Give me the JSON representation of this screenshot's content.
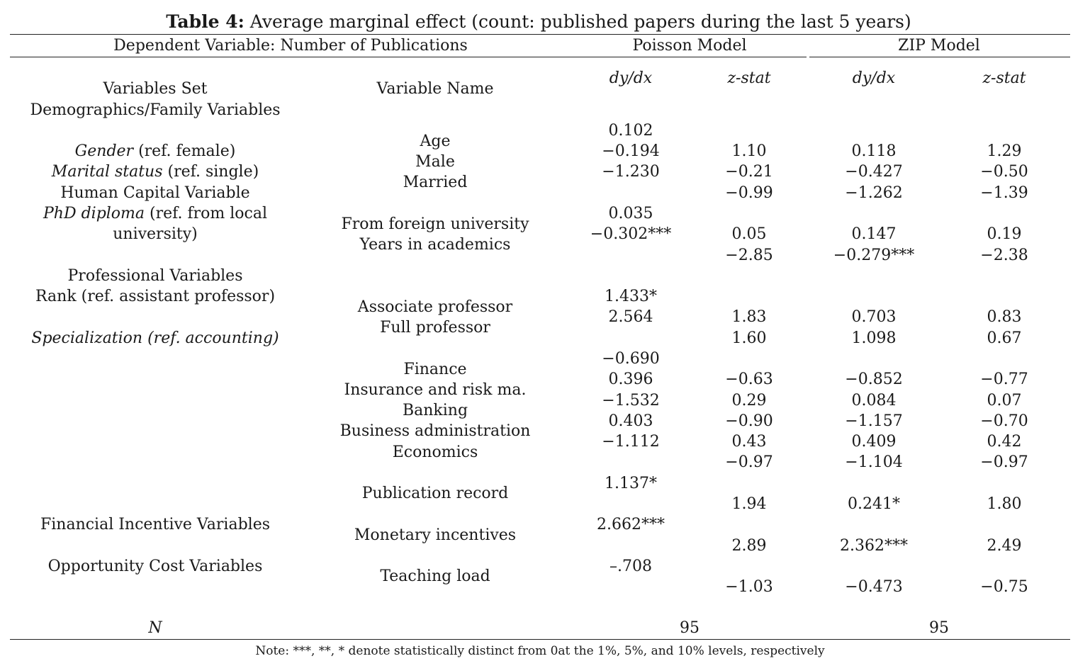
{
  "title": {
    "label": "Table 4:",
    "text": "Average marginal effect (count: published papers during the last 5 years)"
  },
  "header": {
    "dependent": "Dependent Variable: Number of Publications",
    "poisson": "Poisson Model",
    "zip": "ZIP Model",
    "variables_set": "Variables Set",
    "variable_name": "Variable Name",
    "dydx_1": "dy/dx",
    "zstat_1": "z-stat",
    "dydx_2": "dy/dx",
    "zstat_2": "z-stat"
  },
  "sets": [
    {
      "text": "Demographics/Family Variables",
      "italic": false
    },
    {
      "text": "Gender",
      "suffix": " (ref. female)",
      "italic": true
    },
    {
      "text": "Marital status",
      "suffix": " (ref. single)",
      "italic": true
    },
    {
      "text": "Human Capital Variable",
      "italic": false
    },
    {
      "text": "PhD diploma",
      "suffix": " (ref. from local",
      "italic": true
    },
    {
      "text": "university)",
      "italic": false
    },
    {
      "text": "Professional Variables",
      "italic": false
    },
    {
      "text": "Rank (ref. assistant professor)",
      "italic": false
    },
    {
      "text": "Specialization (ref. accounting)",
      "italic": true
    },
    {
      "text": "Financial Incentive Variables",
      "italic": false
    },
    {
      "text": "Opportunity Cost Variables",
      "italic": false
    }
  ],
  "variables": [
    "Age",
    "Male",
    "Married",
    "From foreign university",
    "Years in academics",
    "Associate professor",
    "Full professor",
    "Finance",
    "Insurance and risk ma.",
    "Banking",
    "Business administration",
    "Economics",
    "Publication record",
    "Monetary incentives",
    "Teaching load"
  ],
  "poisson_dydx": [
    "0.102",
    "−0.194",
    "−1.230",
    "0.035",
    "−0.302***",
    "1.433*",
    "2.564",
    "−0.690",
    "0.396",
    "−1.532",
    "0.403",
    "−1.112",
    "1.137*",
    "2.662***",
    "–.708"
  ],
  "poisson_z": [
    "1.10",
    "−0.21",
    "−0.99",
    "0.05",
    "−2.85",
    "1.83",
    "1.60",
    "−0.63",
    "0.29",
    "−0.90",
    "0.43",
    "−0.97",
    "1.94",
    "2.89",
    "−1.03"
  ],
  "zip_dydx": [
    "0.118",
    "−0.427",
    "−1.262",
    "0.147",
    "−0.279***",
    "0.703",
    "1.098",
    "−0.852",
    "0.084",
    "−1.157",
    "0.409",
    "−1.104",
    "0.241*",
    "2.362***",
    "−0.473"
  ],
  "zip_z": [
    "1.29",
    "−0.50",
    "−1.39",
    "0.19",
    "−2.38",
    "0.83",
    "0.67",
    "−0.77",
    "0.07",
    "−0.70",
    "0.42",
    "−0.97",
    "1.80",
    "2.49",
    "−0.75"
  ],
  "footer": {
    "n_label": "N",
    "n_poisson": "95",
    "n_zip": "95",
    "note": "Note: ***, **, * denote statistically distinct from 0at the 1%, 5%, and 10% levels, respectively"
  }
}
